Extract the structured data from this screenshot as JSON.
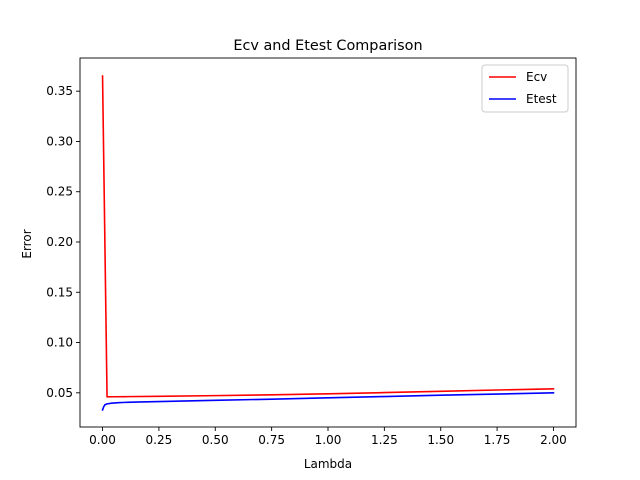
{
  "chart_data": {
    "type": "line",
    "title": "Ecv and Etest Comparison",
    "xlabel": "Lambda",
    "ylabel": "Error",
    "xlim": [
      -0.1,
      2.1
    ],
    "ylim": [
      0.016,
      0.383
    ],
    "xticks": [
      0.0,
      0.25,
      0.5,
      0.75,
      1.0,
      1.25,
      1.5,
      1.75,
      2.0
    ],
    "xtick_labels": [
      "0.00",
      "0.25",
      "0.50",
      "0.75",
      "1.00",
      "1.25",
      "1.50",
      "1.75",
      "2.00"
    ],
    "yticks": [
      0.05,
      0.1,
      0.15,
      0.2,
      0.25,
      0.3,
      0.35
    ],
    "ytick_labels": [
      "0.05",
      "0.10",
      "0.15",
      "0.20",
      "0.25",
      "0.30",
      "0.35"
    ],
    "grid": false,
    "legend_position": "top-right",
    "series": [
      {
        "name": "Ecv",
        "color": "#ff0000",
        "x": [
          0.0,
          0.02,
          0.05,
          0.1,
          0.25,
          0.5,
          0.75,
          1.0,
          1.25,
          1.5,
          1.75,
          2.0
        ],
        "y": [
          0.365,
          0.046,
          0.0461,
          0.0462,
          0.0465,
          0.0472,
          0.048,
          0.049,
          0.0502,
          0.0515,
          0.0528,
          0.054
        ]
      },
      {
        "name": "Etest",
        "color": "#0000ff",
        "x": [
          0.0,
          0.005,
          0.01,
          0.02,
          0.04,
          0.07,
          0.1,
          0.15,
          0.25,
          0.5,
          0.75,
          1.0,
          1.25,
          1.5,
          1.75,
          2.0
        ],
        "y": [
          0.033,
          0.036,
          0.038,
          0.039,
          0.0397,
          0.0402,
          0.0405,
          0.0408,
          0.0413,
          0.0425,
          0.0437,
          0.045,
          0.0463,
          0.0476,
          0.0488,
          0.05
        ]
      }
    ]
  }
}
